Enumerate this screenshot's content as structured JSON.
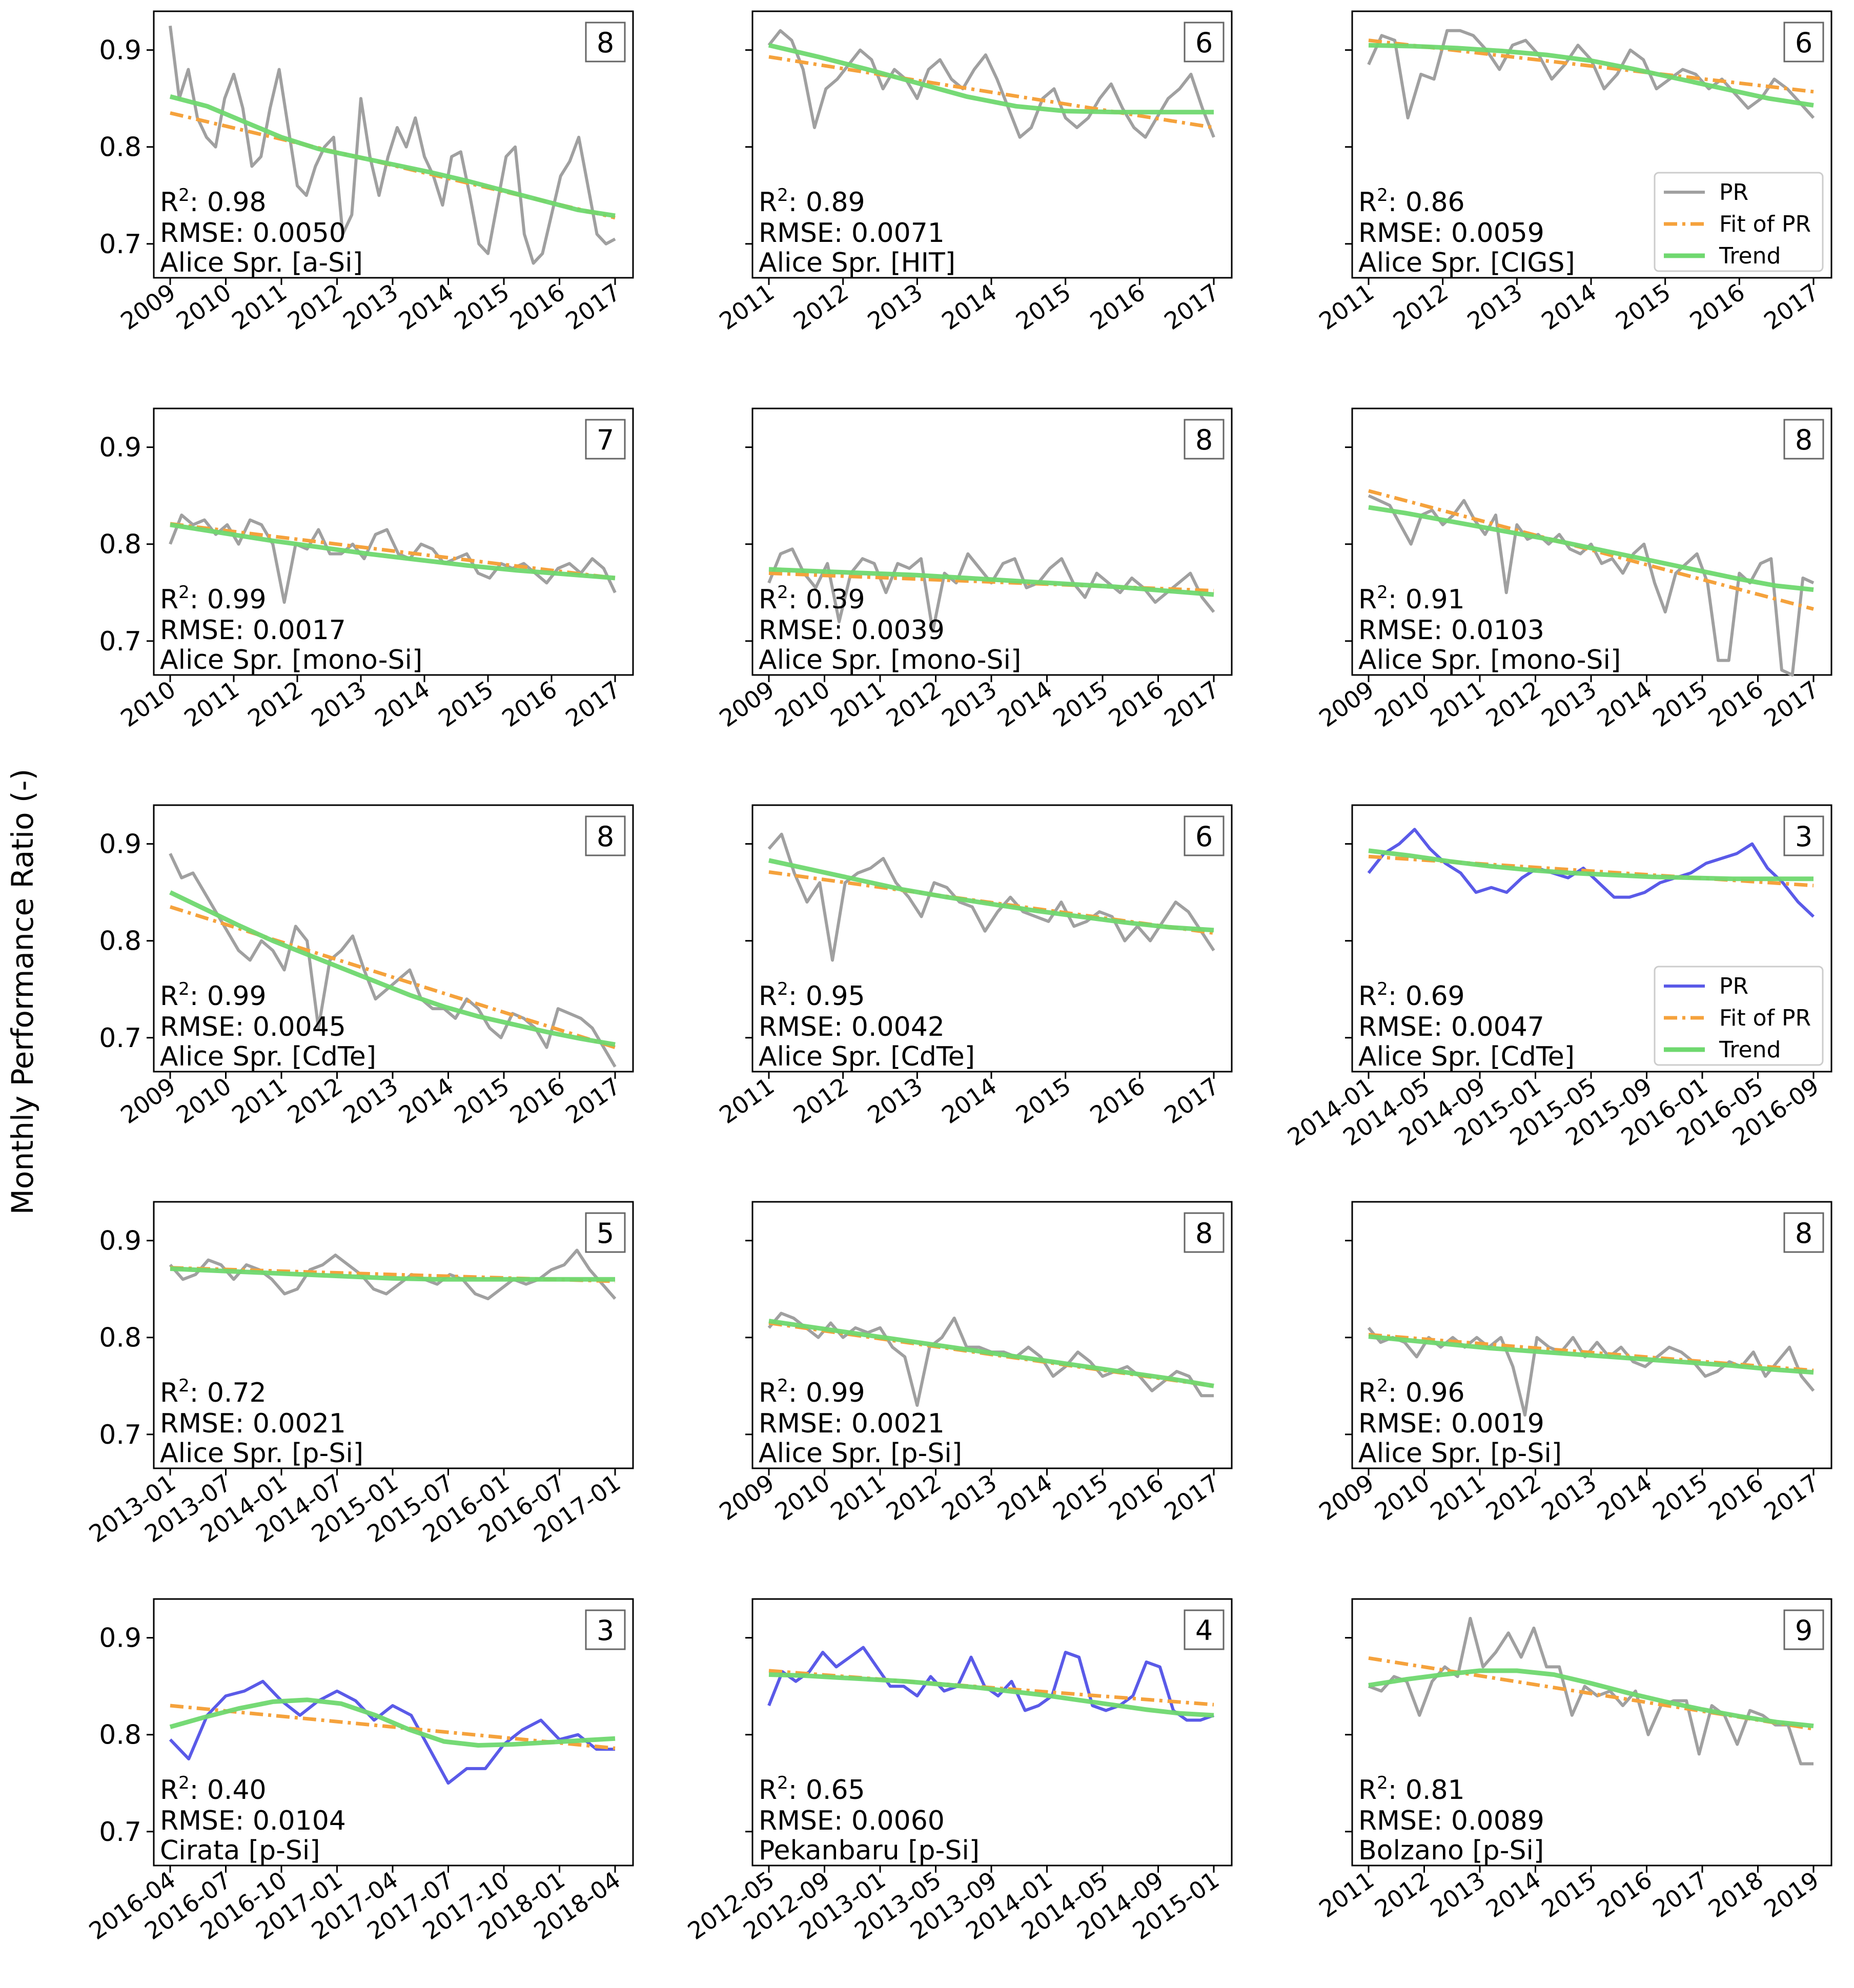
{
  "figure": {
    "ylabel": "Monthly Performance Ratio (-)"
  },
  "legend_labels": [
    "PR",
    "Fit of PR",
    "Trend"
  ],
  "colors": {
    "pr_gray": "#a0a0a0",
    "pr_blue": "#5a5ae8",
    "fit": "#f5a23c",
    "trend": "#6fd86f",
    "axis": "#000000"
  },
  "chart_data": [
    {
      "type": "line",
      "panel": 1,
      "badge": "8",
      "r2": "0.98",
      "rmse": "RMSE: 0.0050",
      "site": "Alice Spr. [a-Si]",
      "pr_color": "gray",
      "legend": false,
      "xticks": [
        "2009",
        "2010",
        "2011",
        "2012",
        "2013",
        "2014",
        "2015",
        "2016",
        "2017"
      ],
      "ylim": [
        0.665,
        0.94
      ],
      "yticks": [
        "0.7",
        "0.8",
        "0.9"
      ],
      "pr": [
        0.925,
        0.85,
        0.88,
        0.83,
        0.81,
        0.8,
        0.85,
        0.875,
        0.84,
        0.78,
        0.79,
        0.84,
        0.88,
        0.82,
        0.76,
        0.75,
        0.78,
        0.8,
        0.81,
        0.71,
        0.73,
        0.85,
        0.79,
        0.75,
        0.79,
        0.82,
        0.8,
        0.83,
        0.79,
        0.77,
        0.74,
        0.79,
        0.795,
        0.75,
        0.7,
        0.69,
        0.74,
        0.79,
        0.8,
        0.71,
        0.68,
        0.69,
        0.73,
        0.77,
        0.785,
        0.81,
        0.76,
        0.71,
        0.7,
        0.705
      ],
      "fit": [
        0.835,
        0.727
      ],
      "trend": [
        0.852,
        0.842,
        0.826,
        0.81,
        0.798,
        0.79,
        0.782,
        0.774,
        0.765,
        0.755,
        0.745,
        0.735,
        0.729
      ]
    },
    {
      "type": "line",
      "panel": 2,
      "badge": "6",
      "r2": "0.89",
      "rmse": "RMSE: 0.0071",
      "site": "Alice Spr. [HIT]",
      "pr_color": "gray",
      "legend": false,
      "xticks": [
        "2011",
        "2012",
        "2013",
        "2014",
        "2015",
        "2016",
        "2017"
      ],
      "ylim": [
        0.665,
        0.94
      ],
      "yticks": [
        "0.7",
        "0.8",
        "0.9"
      ],
      "pr": [
        0.905,
        0.92,
        0.91,
        0.88,
        0.82,
        0.86,
        0.87,
        0.885,
        0.9,
        0.89,
        0.86,
        0.88,
        0.87,
        0.85,
        0.88,
        0.89,
        0.87,
        0.86,
        0.88,
        0.895,
        0.87,
        0.84,
        0.81,
        0.82,
        0.85,
        0.86,
        0.83,
        0.82,
        0.83,
        0.85,
        0.865,
        0.84,
        0.82,
        0.81,
        0.83,
        0.85,
        0.86,
        0.875,
        0.84,
        0.81
      ],
      "fit": [
        0.893,
        0.82
      ],
      "trend": [
        0.905,
        0.893,
        0.88,
        0.866,
        0.852,
        0.842,
        0.837,
        0.836,
        0.836,
        0.836
      ]
    },
    {
      "type": "line",
      "panel": 3,
      "badge": "6",
      "r2": "0.86",
      "rmse": "RMSE: 0.0059",
      "site": "Alice Spr. [CIGS]",
      "pr_color": "gray",
      "legend": true,
      "xticks": [
        "2011",
        "2012",
        "2013",
        "2014",
        "2015",
        "2016",
        "2017"
      ],
      "ylim": [
        0.665,
        0.94
      ],
      "yticks": [
        "0.7",
        "0.8",
        "0.9"
      ],
      "pr": [
        0.885,
        0.915,
        0.91,
        0.83,
        0.875,
        0.87,
        0.92,
        0.92,
        0.915,
        0.9,
        0.88,
        0.905,
        0.91,
        0.895,
        0.87,
        0.885,
        0.905,
        0.89,
        0.86,
        0.875,
        0.9,
        0.89,
        0.86,
        0.87,
        0.88,
        0.875,
        0.86,
        0.87,
        0.855,
        0.84,
        0.85,
        0.87,
        0.86,
        0.845,
        0.83
      ],
      "fit": [
        0.91,
        0.857
      ],
      "trend": [
        0.905,
        0.904,
        0.902,
        0.899,
        0.895,
        0.889,
        0.88,
        0.87,
        0.86,
        0.85,
        0.843
      ]
    },
    {
      "type": "line",
      "panel": 4,
      "badge": "7",
      "r2": "0.99",
      "rmse": "RMSE: 0.0017",
      "site": "Alice Spr. [mono-Si]",
      "pr_color": "gray",
      "legend": false,
      "xticks": [
        "2010",
        "2011",
        "2012",
        "2013",
        "2014",
        "2015",
        "2016",
        "2017"
      ],
      "ylim": [
        0.665,
        0.94
      ],
      "yticks": [
        "0.7",
        "0.8",
        "0.9"
      ],
      "pr": [
        0.8,
        0.83,
        0.82,
        0.825,
        0.81,
        0.82,
        0.8,
        0.825,
        0.82,
        0.8,
        0.74,
        0.8,
        0.795,
        0.815,
        0.79,
        0.79,
        0.8,
        0.785,
        0.81,
        0.815,
        0.79,
        0.785,
        0.8,
        0.795,
        0.78,
        0.785,
        0.79,
        0.77,
        0.765,
        0.78,
        0.775,
        0.78,
        0.77,
        0.76,
        0.775,
        0.78,
        0.77,
        0.785,
        0.775,
        0.75
      ],
      "fit": [
        0.821,
        0.765
      ],
      "trend": [
        0.82,
        0.812,
        0.804,
        0.797,
        0.79,
        0.784,
        0.778,
        0.773,
        0.769,
        0.765
      ]
    },
    {
      "type": "line",
      "panel": 5,
      "badge": "8",
      "r2": "0.39",
      "rmse": "RMSE: 0.0039",
      "site": "Alice Spr. [mono-Si]",
      "pr_color": "gray",
      "legend": false,
      "xticks": [
        "2009",
        "2010",
        "2011",
        "2012",
        "2013",
        "2014",
        "2015",
        "2016",
        "2017"
      ],
      "ylim": [
        0.665,
        0.94
      ],
      "yticks": [
        "0.7",
        "0.8",
        "0.9"
      ],
      "pr": [
        0.76,
        0.79,
        0.795,
        0.77,
        0.755,
        0.78,
        0.72,
        0.77,
        0.785,
        0.78,
        0.75,
        0.78,
        0.775,
        0.785,
        0.71,
        0.77,
        0.76,
        0.79,
        0.775,
        0.76,
        0.78,
        0.785,
        0.755,
        0.76,
        0.775,
        0.785,
        0.76,
        0.745,
        0.77,
        0.76,
        0.75,
        0.765,
        0.755,
        0.74,
        0.75,
        0.76,
        0.77,
        0.745,
        0.73
      ],
      "fit": [
        0.77,
        0.752
      ],
      "trend": [
        0.774,
        0.772,
        0.77,
        0.768,
        0.765,
        0.762,
        0.759,
        0.756,
        0.752,
        0.748
      ]
    },
    {
      "type": "line",
      "panel": 6,
      "badge": "8",
      "r2": "0.91",
      "rmse": "RMSE: 0.0103",
      "site": "Alice Spr. [mono-Si]",
      "pr_color": "gray",
      "legend": false,
      "xticks": [
        "2009",
        "2010",
        "2011",
        "2012",
        "2013",
        "2014",
        "2015",
        "2016",
        "2017"
      ],
      "ylim": [
        0.665,
        0.94
      ],
      "yticks": [
        "0.7",
        "0.8",
        "0.9"
      ],
      "pr": [
        0.85,
        0.845,
        0.84,
        0.82,
        0.8,
        0.83,
        0.835,
        0.82,
        0.83,
        0.845,
        0.825,
        0.81,
        0.83,
        0.75,
        0.82,
        0.805,
        0.81,
        0.8,
        0.81,
        0.795,
        0.79,
        0.8,
        0.78,
        0.785,
        0.77,
        0.79,
        0.8,
        0.76,
        0.73,
        0.77,
        0.78,
        0.79,
        0.76,
        0.68,
        0.68,
        0.77,
        0.76,
        0.78,
        0.785,
        0.67,
        0.665,
        0.765,
        0.76
      ],
      "fit": [
        0.855,
        0.733
      ],
      "trend": [
        0.838,
        0.832,
        0.825,
        0.818,
        0.811,
        0.804,
        0.796,
        0.788,
        0.78,
        0.772,
        0.764,
        0.757,
        0.753
      ]
    },
    {
      "type": "line",
      "panel": 7,
      "badge": "8",
      "r2": "0.99",
      "rmse": "RMSE: 0.0045",
      "site": "Alice Spr. [CdTe]",
      "pr_color": "gray",
      "legend": false,
      "xticks": [
        "2009",
        "2010",
        "2011",
        "2012",
        "2013",
        "2014",
        "2015",
        "2016",
        "2017"
      ],
      "ylim": [
        0.665,
        0.94
      ],
      "yticks": [
        "0.7",
        "0.8",
        "0.9"
      ],
      "pr": [
        0.89,
        0.865,
        0.87,
        0.85,
        0.83,
        0.81,
        0.79,
        0.78,
        0.8,
        0.79,
        0.77,
        0.815,
        0.8,
        0.71,
        0.78,
        0.79,
        0.805,
        0.77,
        0.74,
        0.75,
        0.76,
        0.77,
        0.74,
        0.73,
        0.73,
        0.72,
        0.74,
        0.73,
        0.71,
        0.7,
        0.725,
        0.72,
        0.71,
        0.69,
        0.73,
        0.725,
        0.72,
        0.71,
        0.69,
        0.67
      ],
      "fit": [
        0.835,
        0.69
      ],
      "trend": [
        0.85,
        0.833,
        0.816,
        0.8,
        0.786,
        0.772,
        0.758,
        0.744,
        0.732,
        0.722,
        0.714,
        0.706,
        0.699,
        0.693
      ]
    },
    {
      "type": "line",
      "panel": 8,
      "badge": "6",
      "r2": "0.95",
      "rmse": "RMSE: 0.0042",
      "site": "Alice Spr. [CdTe]",
      "pr_color": "gray",
      "legend": false,
      "xticks": [
        "2011",
        "2012",
        "2013",
        "2014",
        "2015",
        "2016",
        "2017"
      ],
      "ylim": [
        0.665,
        0.94
      ],
      "yticks": [
        "0.7",
        "0.8",
        "0.9"
      ],
      "pr": [
        0.895,
        0.91,
        0.87,
        0.84,
        0.86,
        0.78,
        0.86,
        0.87,
        0.875,
        0.885,
        0.86,
        0.845,
        0.825,
        0.86,
        0.855,
        0.84,
        0.835,
        0.81,
        0.83,
        0.845,
        0.83,
        0.825,
        0.82,
        0.84,
        0.815,
        0.82,
        0.83,
        0.825,
        0.8,
        0.815,
        0.8,
        0.82,
        0.84,
        0.83,
        0.81,
        0.79
      ],
      "fit": [
        0.871,
        0.808
      ],
      "trend": [
        0.883,
        0.873,
        0.863,
        0.853,
        0.845,
        0.838,
        0.831,
        0.825,
        0.819,
        0.814,
        0.811
      ]
    },
    {
      "type": "line",
      "panel": 9,
      "badge": "3",
      "r2": "0.69",
      "rmse": "RMSE: 0.0047",
      "site": "Alice Spr. [CdTe]",
      "pr_color": "blue",
      "legend": true,
      "xticks": [
        "2014-01",
        "2014-05",
        "2014-09",
        "2015-01",
        "2015-05",
        "2015-09",
        "2016-01",
        "2016-05",
        "2016-09"
      ],
      "ylim": [
        0.665,
        0.94
      ],
      "yticks": [
        "0.7",
        "0.8",
        "0.9"
      ],
      "pr": [
        0.87,
        0.89,
        0.9,
        0.915,
        0.895,
        0.88,
        0.87,
        0.85,
        0.855,
        0.85,
        0.865,
        0.875,
        0.87,
        0.865,
        0.875,
        0.86,
        0.845,
        0.845,
        0.85,
        0.86,
        0.865,
        0.87,
        0.88,
        0.885,
        0.89,
        0.9,
        0.875,
        0.86,
        0.84,
        0.825
      ],
      "fit": [
        0.887,
        0.857
      ],
      "trend": [
        0.893,
        0.888,
        0.882,
        0.877,
        0.873,
        0.87,
        0.868,
        0.866,
        0.865,
        0.864,
        0.864,
        0.864
      ]
    },
    {
      "type": "line",
      "panel": 10,
      "badge": "5",
      "r2": "0.72",
      "rmse": "RMSE: 0.0021",
      "site": "Alice Spr. [p-Si]",
      "pr_color": "gray",
      "legend": false,
      "xticks": [
        "2013-01",
        "2013-07",
        "2014-01",
        "2014-07",
        "2015-01",
        "2015-07",
        "2016-01",
        "2016-07",
        "2017-01"
      ],
      "ylim": [
        0.665,
        0.94
      ],
      "yticks": [
        "0.7",
        "0.8",
        "0.9"
      ],
      "pr": [
        0.875,
        0.86,
        0.865,
        0.88,
        0.875,
        0.86,
        0.875,
        0.87,
        0.86,
        0.845,
        0.85,
        0.87,
        0.875,
        0.885,
        0.875,
        0.865,
        0.85,
        0.845,
        0.855,
        0.865,
        0.86,
        0.855,
        0.865,
        0.86,
        0.845,
        0.84,
        0.85,
        0.86,
        0.855,
        0.86,
        0.87,
        0.875,
        0.89,
        0.87,
        0.855,
        0.84
      ],
      "fit": [
        0.872,
        0.858
      ],
      "trend": [
        0.871,
        0.869,
        0.867,
        0.865,
        0.863,
        0.861,
        0.86,
        0.86,
        0.86,
        0.86,
        0.86
      ]
    },
    {
      "type": "line",
      "panel": 11,
      "badge": "8",
      "r2": "0.99",
      "rmse": "RMSE: 0.0021",
      "site": "Alice Spr. [p-Si]",
      "pr_color": "gray",
      "legend": false,
      "xticks": [
        "2009",
        "2010",
        "2011",
        "2012",
        "2013",
        "2014",
        "2015",
        "2016",
        "2017"
      ],
      "ylim": [
        0.665,
        0.94
      ],
      "yticks": [
        "0.7",
        "0.8",
        "0.9"
      ],
      "pr": [
        0.81,
        0.825,
        0.82,
        0.81,
        0.8,
        0.815,
        0.8,
        0.81,
        0.805,
        0.81,
        0.79,
        0.78,
        0.73,
        0.79,
        0.8,
        0.82,
        0.79,
        0.79,
        0.785,
        0.785,
        0.78,
        0.79,
        0.78,
        0.76,
        0.77,
        0.785,
        0.775,
        0.76,
        0.765,
        0.77,
        0.76,
        0.745,
        0.755,
        0.765,
        0.76,
        0.74,
        0.74
      ],
      "fit": [
        0.815,
        0.75
      ],
      "trend": [
        0.817,
        0.811,
        0.805,
        0.799,
        0.793,
        0.787,
        0.781,
        0.775,
        0.769,
        0.763,
        0.757,
        0.75
      ]
    },
    {
      "type": "line",
      "panel": 12,
      "badge": "8",
      "r2": "0.96",
      "rmse": "RMSE: 0.0019",
      "site": "Alice Spr. [p-Si]",
      "pr_color": "gray",
      "legend": false,
      "xticks": [
        "2009",
        "2010",
        "2011",
        "2012",
        "2013",
        "2014",
        "2015",
        "2016",
        "2017"
      ],
      "ylim": [
        0.665,
        0.94
      ],
      "yticks": [
        "0.7",
        "0.8",
        "0.9"
      ],
      "pr": [
        0.81,
        0.795,
        0.8,
        0.795,
        0.78,
        0.8,
        0.79,
        0.8,
        0.79,
        0.8,
        0.79,
        0.8,
        0.77,
        0.72,
        0.8,
        0.79,
        0.785,
        0.8,
        0.78,
        0.795,
        0.78,
        0.79,
        0.775,
        0.77,
        0.78,
        0.79,
        0.785,
        0.775,
        0.76,
        0.765,
        0.775,
        0.77,
        0.785,
        0.76,
        0.775,
        0.79,
        0.76,
        0.745
      ],
      "fit": [
        0.803,
        0.766
      ],
      "trend": [
        0.801,
        0.797,
        0.793,
        0.789,
        0.786,
        0.783,
        0.78,
        0.777,
        0.774,
        0.771,
        0.767,
        0.764
      ]
    },
    {
      "type": "line",
      "panel": 13,
      "badge": "3",
      "r2": "0.40",
      "rmse": "RMSE: 0.0104",
      "site": "Cirata [p-Si]",
      "pr_color": "blue",
      "legend": false,
      "xticks": [
        "2016-04",
        "2016-07",
        "2016-10",
        "2017-01",
        "2017-04",
        "2017-07",
        "2017-10",
        "2018-01",
        "2018-04"
      ],
      "ylim": [
        0.665,
        0.94
      ],
      "yticks": [
        "0.7",
        "0.8",
        "0.9"
      ],
      "pr": [
        0.795,
        0.775,
        0.82,
        0.84,
        0.845,
        0.855,
        0.835,
        0.82,
        0.835,
        0.845,
        0.835,
        0.815,
        0.83,
        0.82,
        0.785,
        0.75,
        0.765,
        0.765,
        0.79,
        0.805,
        0.815,
        0.795,
        0.8,
        0.785,
        0.785
      ],
      "fit": [
        0.83,
        0.786
      ],
      "trend": [
        0.808,
        0.818,
        0.827,
        0.834,
        0.836,
        0.832,
        0.82,
        0.805,
        0.793,
        0.789,
        0.79,
        0.792,
        0.794,
        0.796
      ]
    },
    {
      "type": "line",
      "panel": 14,
      "badge": "4",
      "r2": "0.65",
      "rmse": "RMSE: 0.0060",
      "site": "Pekanbaru [p-Si]",
      "pr_color": "blue",
      "legend": false,
      "xticks": [
        "2012-05",
        "2012-09",
        "2013-01",
        "2013-05",
        "2013-09",
        "2014-01",
        "2014-05",
        "2014-09",
        "2015-01"
      ],
      "ylim": [
        0.665,
        0.94
      ],
      "yticks": [
        "0.7",
        "0.8",
        "0.9"
      ],
      "pr": [
        0.83,
        0.865,
        0.855,
        0.865,
        0.885,
        0.87,
        0.88,
        0.89,
        0.87,
        0.85,
        0.85,
        0.84,
        0.86,
        0.845,
        0.85,
        0.88,
        0.85,
        0.84,
        0.855,
        0.825,
        0.83,
        0.84,
        0.885,
        0.88,
        0.83,
        0.825,
        0.83,
        0.84,
        0.875,
        0.87,
        0.825,
        0.815,
        0.815,
        0.82
      ],
      "fit": [
        0.866,
        0.831
      ],
      "trend": [
        0.862,
        0.861,
        0.859,
        0.857,
        0.855,
        0.852,
        0.849,
        0.845,
        0.841,
        0.836,
        0.831,
        0.826,
        0.822,
        0.82
      ]
    },
    {
      "type": "line",
      "panel": 15,
      "badge": "9",
      "r2": "0.81",
      "rmse": "RMSE: 0.0089",
      "site": "Bolzano [p-Si]",
      "pr_color": "gray",
      "legend": false,
      "xticks": [
        "2011",
        "2012",
        "2013",
        "2014",
        "2015",
        "2016",
        "2017",
        "2018",
        "2019"
      ],
      "ylim": [
        0.665,
        0.94
      ],
      "yticks": [
        "0.7",
        "0.8",
        "0.9"
      ],
      "pr": [
        0.85,
        0.845,
        0.86,
        0.855,
        0.82,
        0.855,
        0.87,
        0.86,
        0.92,
        0.87,
        0.885,
        0.905,
        0.88,
        0.91,
        0.87,
        0.87,
        0.82,
        0.85,
        0.84,
        0.845,
        0.83,
        0.845,
        0.8,
        0.83,
        0.835,
        0.835,
        0.78,
        0.83,
        0.82,
        0.79,
        0.825,
        0.82,
        0.81,
        0.81,
        0.77,
        0.77
      ],
      "fit": [
        0.879,
        0.806
      ],
      "trend": [
        0.851,
        0.857,
        0.862,
        0.866,
        0.866,
        0.862,
        0.853,
        0.843,
        0.834,
        0.826,
        0.819,
        0.813,
        0.809
      ]
    }
  ]
}
